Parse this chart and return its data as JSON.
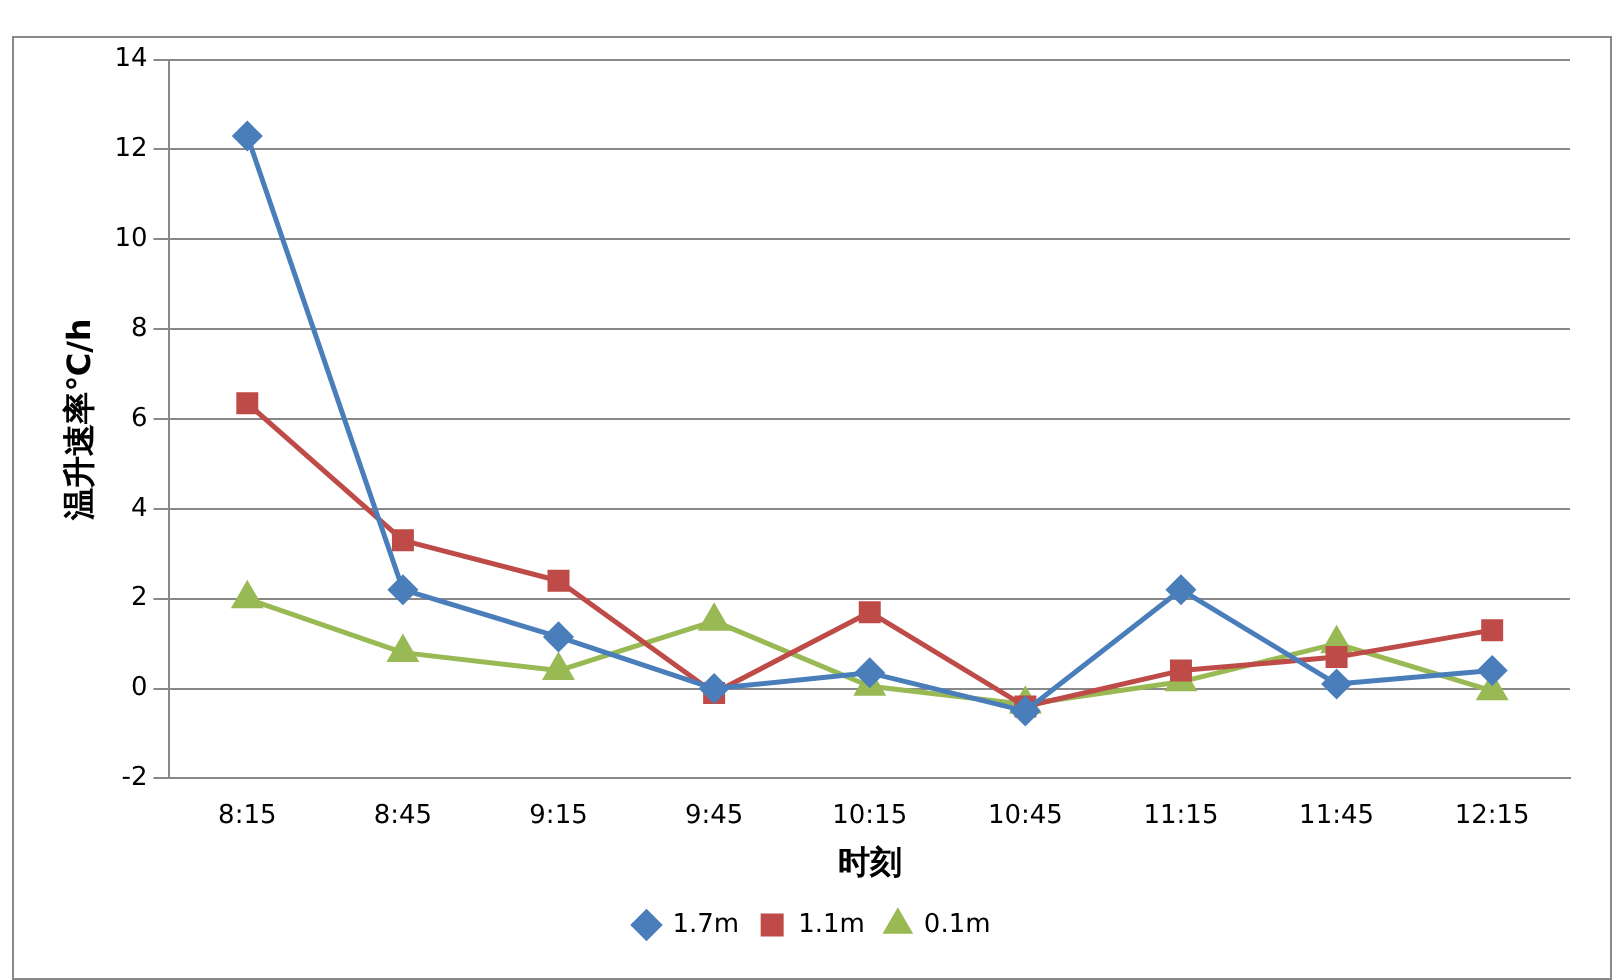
{
  "chart_data": {
    "type": "line",
    "xlabel": "时刻",
    "ylabel": "温升速率℃/h",
    "categories": [
      "8:15",
      "8:45",
      "9:15",
      "9:45",
      "10:15",
      "10:45",
      "11:15",
      "11:45",
      "12:15"
    ],
    "series": [
      {
        "name": "1.7m",
        "color": "#4a7ebb",
        "marker": "diamond",
        "values": [
          12.3,
          2.2,
          1.15,
          0.0,
          0.35,
          -0.5,
          2.2,
          0.1,
          0.4
        ]
      },
      {
        "name": "1.1m",
        "color": "#be4b48",
        "marker": "square",
        "values": [
          6.35,
          3.3,
          2.4,
          -0.1,
          1.7,
          -0.4,
          0.4,
          0.7,
          1.3
        ]
      },
      {
        "name": "0.1m",
        "color": "#98b954",
        "marker": "triangle",
        "values": [
          2.0,
          0.8,
          0.4,
          1.5,
          0.05,
          -0.35,
          0.15,
          1.0,
          -0.05
        ]
      }
    ],
    "ylim": [
      -2,
      14
    ],
    "yticks": [
      -2,
      0,
      2,
      4,
      6,
      8,
      10,
      12,
      14
    ],
    "grid": "y",
    "legend": "bottom",
    "line_style": "solid"
  }
}
